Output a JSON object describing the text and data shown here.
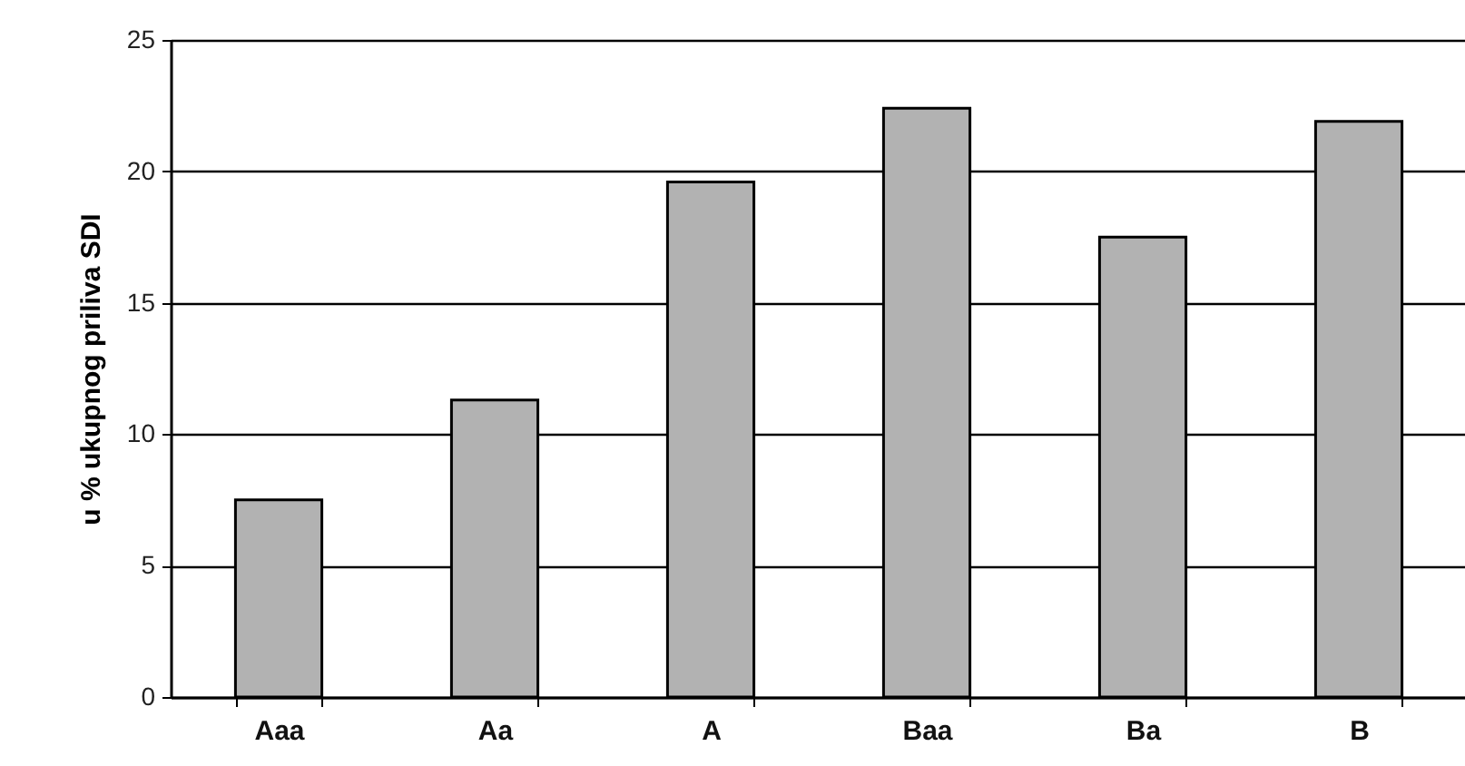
{
  "chart_data": {
    "type": "bar",
    "ylabel": "u % ukupnog priliva SDI",
    "categories": [
      "Aaa",
      "Aa",
      "A",
      "Baa",
      "Ba",
      "B"
    ],
    "values": [
      7.5,
      11.3,
      19.6,
      22.4,
      17.5,
      21.9
    ],
    "color": "#b2b2b2",
    "ylim": [
      0,
      25
    ],
    "yticks": [
      0,
      5,
      10,
      15,
      20,
      25
    ],
    "grid": "y"
  }
}
